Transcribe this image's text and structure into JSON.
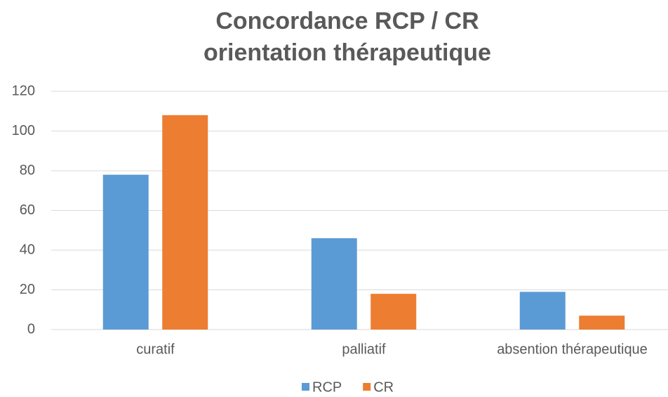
{
  "chart_data": {
    "type": "bar",
    "title": [
      "Concordance RCP / CR",
      "orientation thérapeutique"
    ],
    "categories": [
      "curatif",
      "palliatif",
      "absention thérapeutique"
    ],
    "series": [
      {
        "name": "RCP",
        "color": "#5b9bd5",
        "values": [
          78,
          46,
          19
        ]
      },
      {
        "name": "CR",
        "color": "#ed7d31",
        "values": [
          108,
          18,
          7
        ]
      }
    ],
    "ylim": [
      0,
      120
    ],
    "yticks": [
      0,
      20,
      40,
      60,
      80,
      100,
      120
    ],
    "grid": true,
    "legend": "bottom"
  }
}
